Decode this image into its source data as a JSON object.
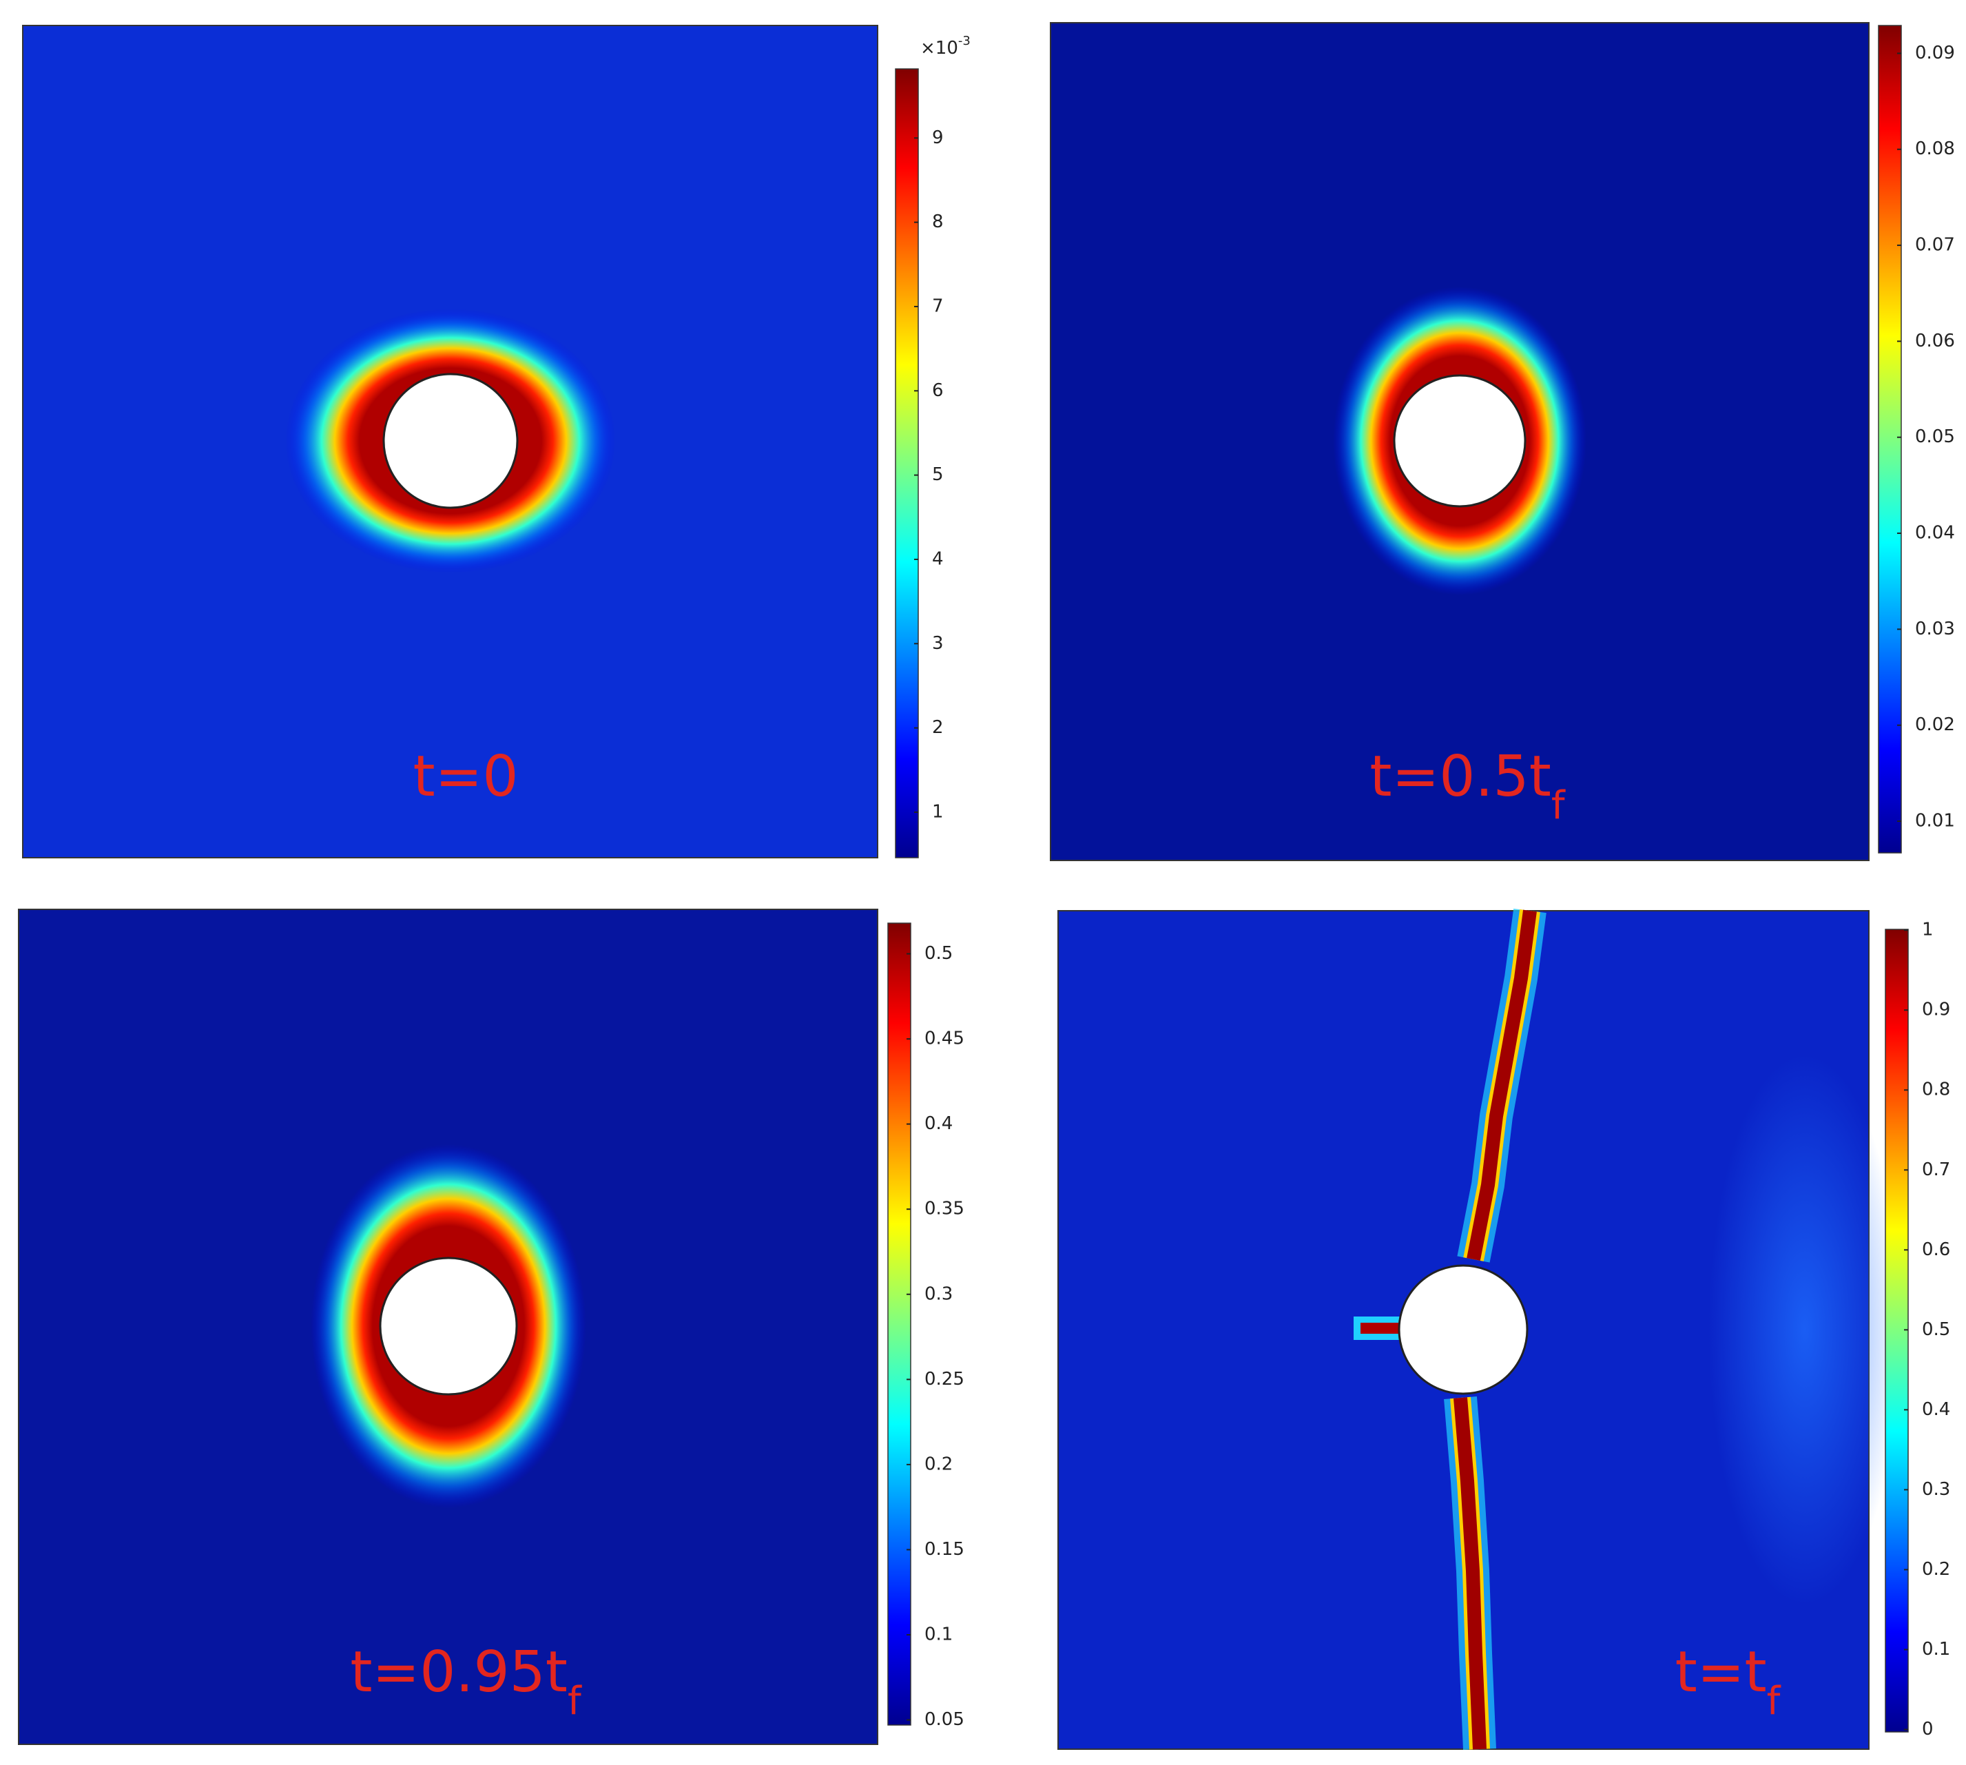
{
  "panels": [
    {
      "label": {
        "main": "t=0"
      },
      "colorbar": {
        "multiplier": {
          "base": "×10",
          "exponent": "-3"
        },
        "lim": [
          0.46,
          9.82
        ],
        "ticks": [
          1,
          2,
          3,
          4,
          5,
          6,
          7,
          8,
          9
        ]
      }
    },
    {
      "label": {
        "main": "t=0.5t",
        "sub": "f"
      },
      "colorbar": {
        "lim": [
          0.0067,
          0.0929
        ],
        "ticks": [
          0.01,
          0.02,
          0.03,
          0.04,
          0.05,
          0.06,
          0.07,
          0.08,
          0.09
        ]
      }
    },
    {
      "label": {
        "main": "t=0.95t",
        "sub": "f"
      },
      "colorbar": {
        "lim": [
          0.047,
          0.518
        ],
        "ticks": [
          0.05,
          0.1,
          0.15,
          0.2,
          0.25,
          0.3,
          0.35,
          0.4,
          0.45,
          0.5
        ]
      }
    },
    {
      "label": {
        "main": "t=t",
        "sub": "f"
      },
      "colorbar": {
        "lim": [
          -0.003,
          1.001
        ],
        "ticks": [
          0,
          0.1,
          0.2,
          0.3,
          0.4,
          0.5,
          0.6,
          0.7,
          0.8,
          0.9,
          1
        ]
      }
    }
  ]
}
